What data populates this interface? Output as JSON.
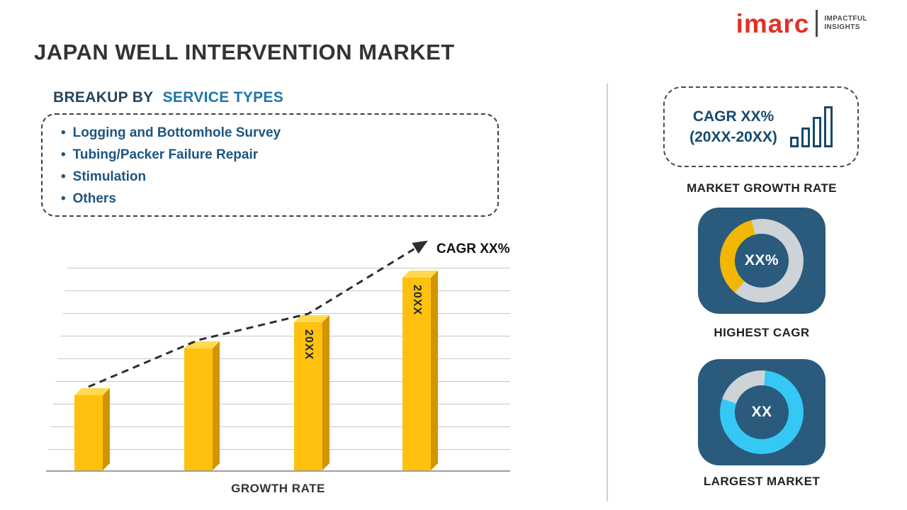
{
  "header": {
    "title": "JAPAN WELL INTERVENTION MARKET",
    "logo": {
      "brand": "imarc",
      "tagline_line1": "IMPACTFUL",
      "tagline_line2": "INSIGHTS"
    }
  },
  "breakup": {
    "heading_prefix": "BREAKUP BY",
    "heading_highlight": "SERVICE TYPES",
    "items": [
      "Logging and Bottomhole Survey",
      "Tubing/Packer Failure Repair",
      "Stimulation",
      "Others"
    ]
  },
  "sidebar": {
    "growth_box_line1": "CAGR XX%",
    "growth_box_line2": "(20XX-20XX)",
    "market_growth_rate_label": "MARKET GROWTH RATE",
    "highest_cagr_label": "HIGHEST CAGR",
    "largest_market_label": "LARGEST MARKET"
  },
  "colors": {
    "navy_tile": "#2A5A7C",
    "heading_blue": "#1E74AC",
    "text_navy": "#1D5580",
    "bar_yellow": "#FFC10E",
    "donut_yellow": "#F2B705",
    "donut_cyan": "#35C8F5",
    "donut_gray": "#CDD3D6",
    "logo_red": "#E23128"
  },
  "chart_data": [
    {
      "type": "bar",
      "categories": [
        "",
        "",
        "20XX",
        "20XX"
      ],
      "values": [
        37,
        60,
        73,
        95
      ],
      "title": "",
      "xlabel": "GROWTH RATE",
      "ylabel": "",
      "ylim": [
        0,
        100
      ],
      "grid": "horizontal",
      "legend": "none",
      "bar_color": "#FFC10E",
      "trend": {
        "style": "dashed-arrow-up",
        "label": "CAGR XX%"
      }
    },
    {
      "type": "pie",
      "title": "HIGHEST CAGR",
      "center_label": "XX%",
      "slices": [
        {
          "name": "highlighted-share",
          "value": 35,
          "color": "#F2B705"
        },
        {
          "name": "remainder",
          "value": 65,
          "color": "#CDD3D6"
        }
      ]
    },
    {
      "type": "pie",
      "title": "LARGEST MARKET",
      "center_label": "XX",
      "slices": [
        {
          "name": "highlighted-share",
          "value": 79,
          "color": "#35C8F5"
        },
        {
          "name": "remainder",
          "value": 21,
          "color": "#CDD3D6"
        }
      ]
    }
  ]
}
